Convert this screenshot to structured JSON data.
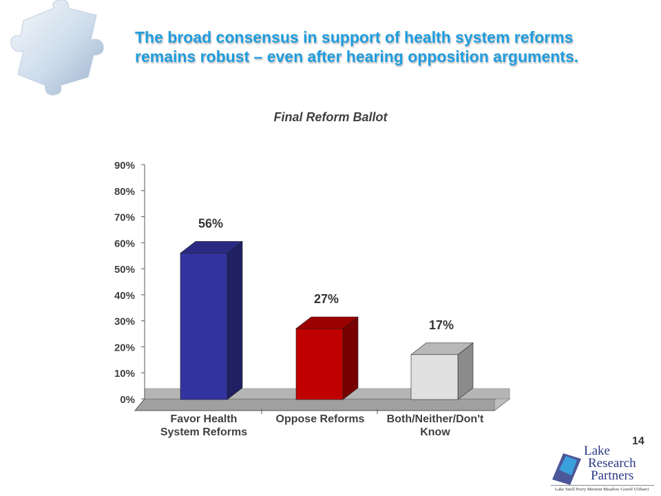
{
  "slide": {
    "headline_line1": "The broad consensus in support of health system reforms",
    "headline_line2": "remains robust – even after hearing opposition arguments.",
    "page_number": "14",
    "logo": {
      "name_line1": "Lake",
      "name_line2": "Research",
      "name_line3": "Partners",
      "partners": "Lake  Snell  Perry  Mermin  Meadow  Gotoff  Ulibarri"
    }
  },
  "colors": {
    "headline": "#1f9de0",
    "favor": "#3333a0",
    "oppose": "#c00000",
    "neither": "#e0e0e0",
    "floor": "#a0a0a0"
  },
  "chart_data": {
    "type": "bar",
    "title": "Final Reform Ballot",
    "categories": [
      "Favor Health System Reforms",
      "Oppose Reforms",
      "Both/Neither/Don't Know"
    ],
    "category_label_lines": [
      [
        "Favor Health",
        "System Reforms"
      ],
      [
        "Oppose Reforms"
      ],
      [
        "Both/Neither/Don't",
        "Know"
      ]
    ],
    "values": [
      56,
      27,
      17
    ],
    "data_labels": [
      "56%",
      "27%",
      "17%"
    ],
    "ylim": [
      0,
      90
    ],
    "yticks": [
      0,
      10,
      20,
      30,
      40,
      50,
      60,
      70,
      80,
      90
    ],
    "ytick_labels": [
      "0%",
      "10%",
      "20%",
      "30%",
      "40%",
      "50%",
      "60%",
      "70%",
      "80%",
      "90%"
    ],
    "xlabel": "",
    "ylabel": "",
    "legend": false,
    "grid": false,
    "style": "3d-column"
  }
}
